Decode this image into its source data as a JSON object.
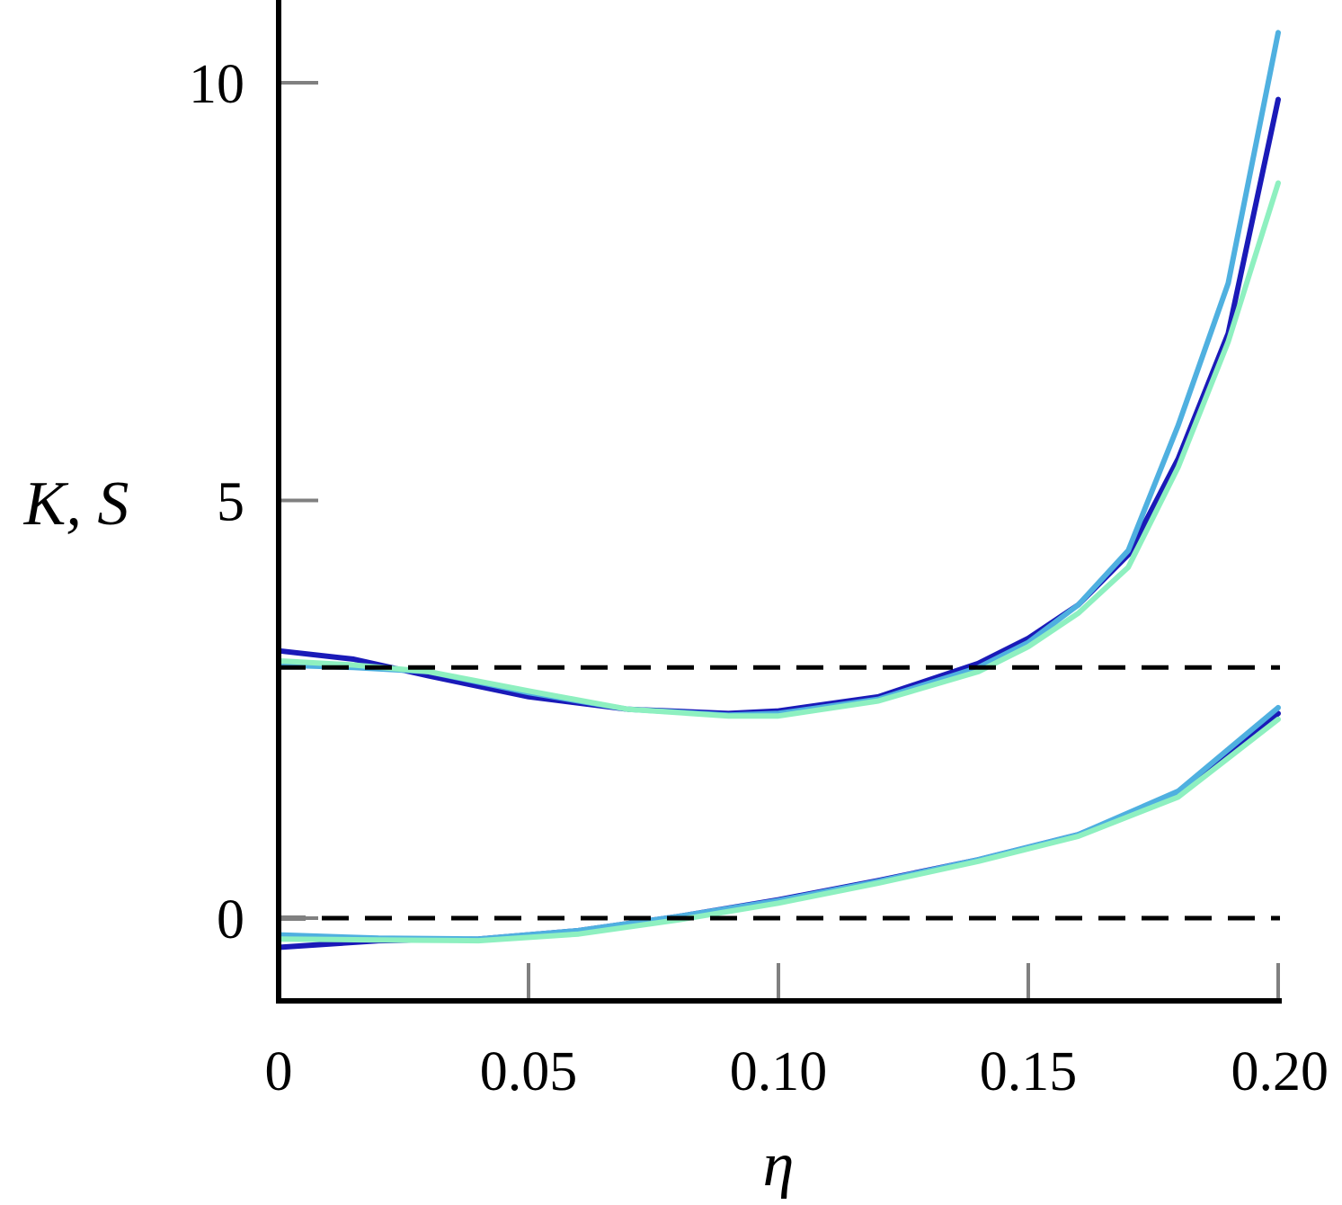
{
  "chart_data": {
    "type": "line",
    "xlabel": "η",
    "ylabel": "K, S",
    "xlim": [
      0,
      0.2
    ],
    "ylim": [
      -1,
      10.8
    ],
    "x_ticks": [
      {
        "value": 0,
        "label": "0"
      },
      {
        "value": 0.05,
        "label": "0.05"
      },
      {
        "value": 0.1,
        "label": "0.10"
      },
      {
        "value": 0.15,
        "label": "0.15"
      },
      {
        "value": 0.2,
        "label": "0.20"
      }
    ],
    "y_ticks": [
      {
        "value": 0,
        "label": "0"
      },
      {
        "value": 5,
        "label": "5"
      },
      {
        "value": 10,
        "label": "10"
      }
    ],
    "reference_lines": [
      {
        "y": 3,
        "style": "dashed",
        "color": "#000000"
      },
      {
        "y": 0,
        "style": "dashed",
        "color": "#000000"
      }
    ],
    "grid": false,
    "legend": "none",
    "series": [
      {
        "group": "K",
        "color": "#1a1ab8",
        "x": [
          0,
          0.015,
          0.03,
          0.05,
          0.07,
          0.09,
          0.1,
          0.12,
          0.14,
          0.15,
          0.16,
          0.17,
          0.18,
          0.19,
          0.2
        ],
        "y": [
          3.2,
          3.1,
          2.9,
          2.65,
          2.5,
          2.45,
          2.48,
          2.65,
          3.05,
          3.35,
          3.75,
          4.35,
          5.5,
          7.0,
          9.8
        ]
      },
      {
        "group": "K",
        "color": "#4fb0e0",
        "x": [
          0,
          0.015,
          0.03,
          0.05,
          0.07,
          0.09,
          0.1,
          0.12,
          0.14,
          0.15,
          0.16,
          0.17,
          0.18,
          0.19,
          0.2
        ],
        "y": [
          3.03,
          3.0,
          2.95,
          2.7,
          2.5,
          2.43,
          2.45,
          2.62,
          3.0,
          3.3,
          3.75,
          4.4,
          5.9,
          7.6,
          10.6
        ]
      },
      {
        "group": "K",
        "color": "#8ef0c0",
        "x": [
          0,
          0.015,
          0.03,
          0.05,
          0.07,
          0.09,
          0.1,
          0.12,
          0.14,
          0.15,
          0.16,
          0.17,
          0.18,
          0.19,
          0.2
        ],
        "y": [
          3.08,
          3.03,
          2.95,
          2.72,
          2.5,
          2.42,
          2.42,
          2.6,
          2.95,
          3.25,
          3.65,
          4.2,
          5.4,
          6.9,
          8.8
        ]
      },
      {
        "group": "S",
        "color": "#1a1ab8",
        "x": [
          0,
          0.02,
          0.04,
          0.06,
          0.08,
          0.1,
          0.12,
          0.14,
          0.16,
          0.18,
          0.2
        ],
        "y": [
          -0.35,
          -0.27,
          -0.25,
          -0.15,
          0.02,
          0.22,
          0.45,
          0.7,
          1.0,
          1.5,
          2.45
        ]
      },
      {
        "group": "S",
        "color": "#4fb0e0",
        "x": [
          0,
          0.02,
          0.04,
          0.06,
          0.08,
          0.1,
          0.12,
          0.14,
          0.16,
          0.18,
          0.2
        ],
        "y": [
          -0.2,
          -0.24,
          -0.25,
          -0.15,
          0.02,
          0.21,
          0.44,
          0.7,
          1.0,
          1.52,
          2.52
        ]
      },
      {
        "group": "S",
        "color": "#8ef0c0",
        "x": [
          0,
          0.02,
          0.04,
          0.06,
          0.08,
          0.1,
          0.12,
          0.14,
          0.16,
          0.18,
          0.2
        ],
        "y": [
          -0.25,
          -0.26,
          -0.27,
          -0.19,
          -0.02,
          0.18,
          0.42,
          0.68,
          0.98,
          1.45,
          2.38
        ]
      }
    ]
  }
}
